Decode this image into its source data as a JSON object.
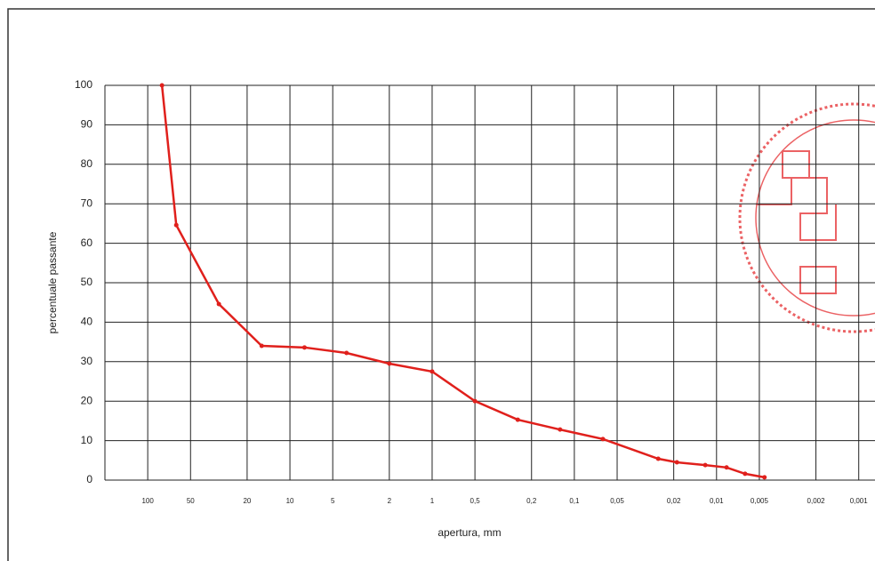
{
  "chart_data": {
    "type": "line",
    "xlabel": "apertura, mm",
    "ylabel": "percentuale passante",
    "xscale": "log",
    "xlim": [
      200,
      0.00085
    ],
    "ylim": [
      0,
      100
    ],
    "xticks": [
      100,
      50,
      20,
      10,
      5,
      2,
      1,
      {
        "value": 0.5,
        "label": "0,5"
      },
      {
        "value": 0.2,
        "label": "0,2"
      },
      {
        "value": 0.1,
        "label": "0,1"
      },
      {
        "value": 0.05,
        "label": "0,05"
      },
      {
        "value": 0.02,
        "label": "0,02"
      },
      {
        "value": 0.01,
        "label": "0,01"
      },
      {
        "value": 0.005,
        "label": "0,005"
      },
      {
        "value": 0.002,
        "label": "0,002"
      },
      {
        "value": 0.001,
        "label": "0,001"
      }
    ],
    "yticks": [
      0,
      10,
      20,
      30,
      40,
      50,
      60,
      70,
      80,
      90,
      100
    ],
    "grid": true,
    "color": "#e0201c",
    "x": [
      79.4,
      63,
      31.6,
      15.8,
      7.9,
      4,
      2,
      1,
      0.5,
      0.25,
      0.126,
      0.063,
      0.0257,
      0.019,
      0.012,
      0.0085,
      0.0063,
      0.0046
    ],
    "values": [
      100,
      64.6,
      44.6,
      34,
      33.6,
      32.2,
      29.5,
      27.5,
      20,
      15.3,
      12.8,
      10.4,
      5.4,
      4.5,
      3.8,
      3.2,
      1.6,
      0.7
    ]
  }
}
